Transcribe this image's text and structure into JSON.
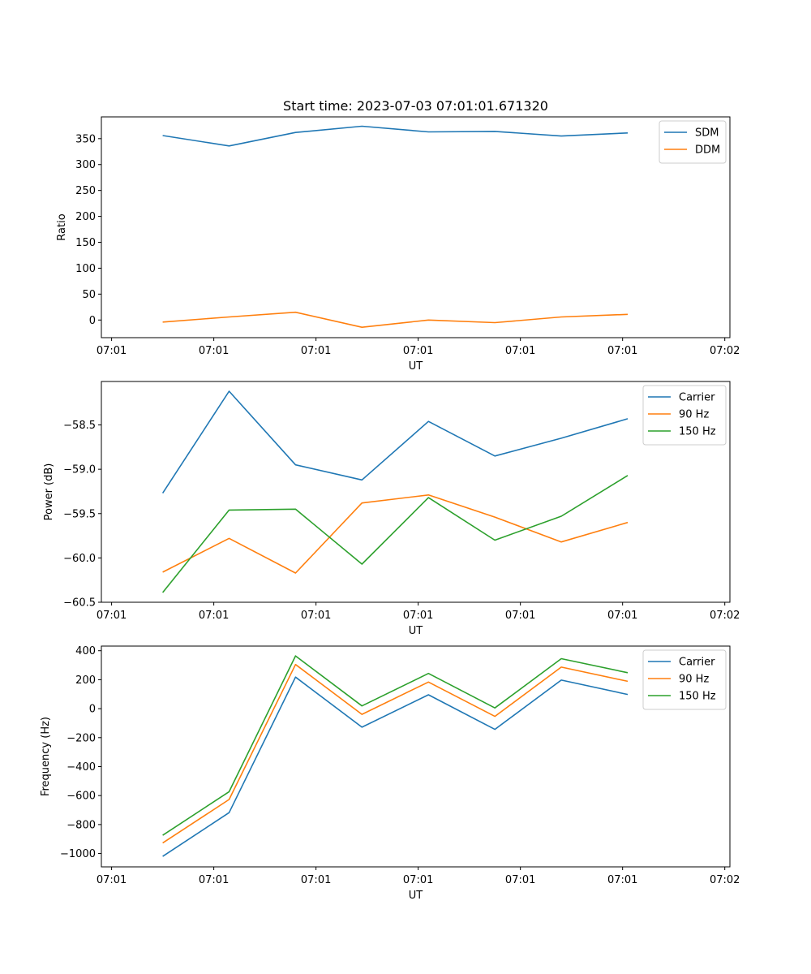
{
  "chart_data": [
    {
      "type": "line",
      "title": "Start time: 2023-07-03 07:01:01.671320",
      "xlabel": "UT",
      "ylabel": "Ratio",
      "x": [
        0.5,
        1.15,
        1.8,
        2.45,
        3.1,
        3.75,
        4.4,
        5.05
      ],
      "xlim": [
        -0.1,
        6.05
      ],
      "xticks": [
        0,
        1,
        2,
        3,
        4,
        5,
        6
      ],
      "xtick_labels": [
        "07:01",
        "07:01",
        "07:01",
        "07:01",
        "07:01",
        "07:01",
        "07:02"
      ],
      "ylim": [
        -34,
        392
      ],
      "yticks": [
        0,
        50,
        100,
        150,
        200,
        250,
        300,
        350
      ],
      "ytick_labels": [
        "0",
        "50",
        "100",
        "150",
        "200",
        "250",
        "300",
        "350"
      ],
      "legend_position": "top-right",
      "series": [
        {
          "name": "SDM",
          "color": "#1f77b4",
          "values": [
            356,
            336,
            362,
            374,
            363,
            364,
            355,
            361
          ]
        },
        {
          "name": "DDM",
          "color": "#ff7f0e",
          "values": [
            -4,
            6,
            15,
            -14,
            0,
            -5,
            6,
            11
          ]
        }
      ]
    },
    {
      "type": "line",
      "title": "",
      "xlabel": "UT",
      "ylabel": "Power (dB)",
      "x": [
        0.5,
        1.15,
        1.8,
        2.45,
        3.1,
        3.75,
        4.4,
        5.05
      ],
      "xlim": [
        -0.1,
        6.05
      ],
      "xticks": [
        0,
        1,
        2,
        3,
        4,
        5,
        6
      ],
      "xtick_labels": [
        "07:01",
        "07:01",
        "07:01",
        "07:01",
        "07:01",
        "07:01",
        "07:02"
      ],
      "ylim": [
        -60.5,
        -58.01
      ],
      "yticks": [
        -60.5,
        -60.0,
        -59.5,
        -59.0,
        -58.5
      ],
      "ytick_labels": [
        "−60.5",
        "−60.0",
        "−59.5",
        "−59.0",
        "−58.5"
      ],
      "legend_position": "top-right",
      "series": [
        {
          "name": "Carrier",
          "color": "#1f77b4",
          "values": [
            -59.27,
            -58.12,
            -58.95,
            -59.12,
            -58.46,
            -58.85,
            -58.65,
            -58.43
          ]
        },
        {
          "name": "90 Hz",
          "color": "#ff7f0e",
          "values": [
            -60.16,
            -59.78,
            -60.17,
            -59.38,
            -59.29,
            -59.54,
            -59.82,
            -59.6
          ]
        },
        {
          "name": "150 Hz",
          "color": "#2ca02c",
          "values": [
            -60.39,
            -59.46,
            -59.45,
            -60.07,
            -59.32,
            -59.8,
            -59.53,
            -59.07
          ]
        }
      ]
    },
    {
      "type": "line",
      "title": "",
      "xlabel": "UT",
      "ylabel": "Frequency (Hz)",
      "x": [
        0.5,
        1.15,
        1.8,
        2.45,
        3.1,
        3.75,
        4.4,
        5.05
      ],
      "xlim": [
        -0.1,
        6.05
      ],
      "xticks": [
        0,
        1,
        2,
        3,
        4,
        5,
        6
      ],
      "xtick_labels": [
        "07:01",
        "07:01",
        "07:01",
        "07:01",
        "07:01",
        "07:01",
        "07:02"
      ],
      "ylim": [
        -1092,
        432
      ],
      "yticks": [
        -1000,
        -800,
        -600,
        -400,
        -200,
        0,
        200,
        400
      ],
      "ytick_labels": [
        "−1000",
        "−800",
        "−600",
        "−400",
        "−200",
        "0",
        "200",
        "400"
      ],
      "legend_position": "top-right",
      "series": [
        {
          "name": "Carrier",
          "color": "#1f77b4",
          "values": [
            -1020,
            -718,
            218,
            -128,
            96,
            -143,
            197,
            98
          ]
        },
        {
          "name": "90 Hz",
          "color": "#ff7f0e",
          "values": [
            -927,
            -627,
            305,
            -39,
            184,
            -53,
            287,
            189
          ]
        },
        {
          "name": "150 Hz",
          "color": "#2ca02c",
          "values": [
            -874,
            -573,
            364,
            19,
            243,
            5,
            345,
            248
          ]
        }
      ]
    }
  ]
}
